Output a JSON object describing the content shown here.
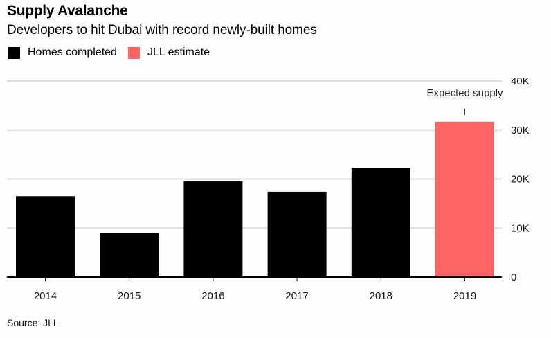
{
  "chart_data": {
    "type": "bar",
    "title": "Supply Avalanche",
    "subtitle": "Developers to hit Dubai with record newly-built homes",
    "categories": [
      "2014",
      "2015",
      "2016",
      "2017",
      "2018",
      "2019"
    ],
    "series": [
      {
        "name": "Homes completed",
        "color": "#000000",
        "values": [
          16500,
          9000,
          19500,
          17400,
          22300,
          null
        ]
      },
      {
        "name": "JLL estimate",
        "color": "#ff6464",
        "values": [
          null,
          null,
          null,
          null,
          null,
          31700
        ]
      }
    ],
    "ylim": [
      0,
      40000
    ],
    "yticks": [
      0,
      10000,
      20000,
      30000,
      40000
    ],
    "ytick_labels": [
      "0",
      "10K",
      "20K",
      "30K",
      "40K"
    ],
    "yaxis_position": "right",
    "grid": true,
    "legend_position": "top-left",
    "annotations": [
      {
        "text": "Expected supply",
        "category": "2019"
      }
    ],
    "xlabel": "",
    "ylabel": "",
    "source": "Source: JLL"
  }
}
